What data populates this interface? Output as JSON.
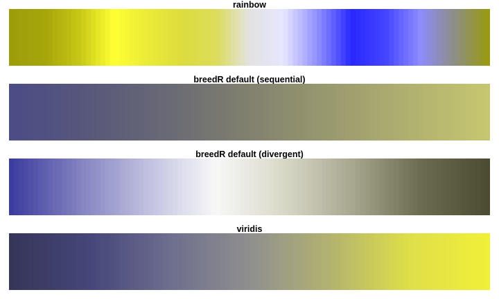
{
  "chart_data": [
    {
      "type": "heatmap",
      "title": "rainbow",
      "colors": [
        "#9c9d09",
        "#a6a60b",
        "#c6c715",
        "#ffff33",
        "#eaea38",
        "#dcdc3e",
        "#dcdc5a",
        "#e2e2e2",
        "#e6e6ff",
        "#8f8fff",
        "#2828ff",
        "#4444ff",
        "#8c8cff",
        "#8e8e89",
        "#999913"
      ]
    },
    {
      "type": "heatmap",
      "title": "breedR default (sequential)",
      "colors": [
        "#4c4c86",
        "#58587a",
        "#6a6a75",
        "#81816f",
        "#99996f",
        "#b0b070",
        "#c6c670"
      ]
    },
    {
      "type": "heatmap",
      "title": "breedR default (divergent)",
      "colors": [
        "#3c3ca0",
        "#8282c0",
        "#c0c0e0",
        "#f8f8f8",
        "#d8d8c8",
        "#a8a890",
        "#6c6c50",
        "#4c4c33"
      ]
    },
    {
      "type": "heatmap",
      "title": "viridis",
      "colors": [
        "#36365a",
        "#46467a",
        "#6e6e8f",
        "#8f8f8f",
        "#b2b270",
        "#dede4a",
        "#f0f038"
      ]
    }
  ]
}
